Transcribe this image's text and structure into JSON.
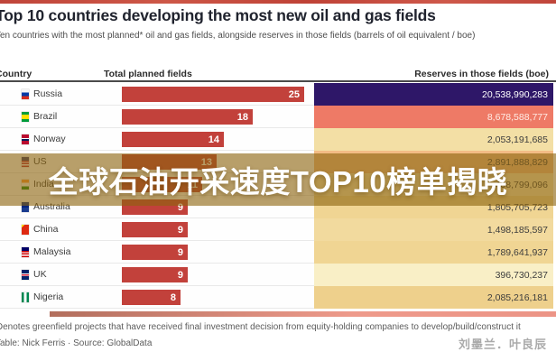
{
  "header": {
    "title": "Top 10 countries developing the most new oil and gas fields",
    "subtitle": "Ten countries with the most planned* oil and gas fields, alongside reserves in those fields (barrels of oil equivalent / boe)"
  },
  "table": {
    "columns": [
      "Country",
      "Total planned fields",
      "Reserves in those fields (boe)"
    ],
    "bar_color": "#c2413b",
    "rows": [
      {
        "country": "Russia",
        "flag": "russia",
        "planned": 25,
        "planned_label": "25",
        "reserves": "20,538,990,283",
        "cell_color": "#2e1768",
        "cell_text_color": "#ffffff"
      },
      {
        "country": "Brazil",
        "flag": "brazil",
        "planned": 18,
        "planned_label": "18",
        "reserves": "8,678,588,777",
        "cell_color": "#ee7a66",
        "cell_text_color": "#ffece5"
      },
      {
        "country": "Norway",
        "flag": "norway",
        "planned": 14,
        "planned_label": "14",
        "reserves": "2,053,191,685",
        "cell_color": "#f3dfa5",
        "cell_text_color": "#3d3d3d"
      },
      {
        "country": "US",
        "flag": "us",
        "planned": 13,
        "planned_label": "13",
        "reserves": "2,891,888,829",
        "cell_color": "#f2bc85",
        "cell_text_color": "#3d3d3d"
      },
      {
        "country": "India",
        "flag": "india",
        "planned": 11,
        "planned_label": "11",
        "reserves": "408,799,096",
        "cell_color": "#f6e5b2",
        "cell_text_color": "#3d3d3d"
      },
      {
        "country": "Australia",
        "flag": "australia",
        "planned": 9,
        "planned_label": "9",
        "reserves": "1,805,705,723",
        "cell_color": "#f0d593",
        "cell_text_color": "#3d3d3d"
      },
      {
        "country": "China",
        "flag": "china",
        "planned": 9,
        "planned_label": "9",
        "reserves": "1,498,185,597",
        "cell_color": "#f2da9e",
        "cell_text_color": "#3d3d3d"
      },
      {
        "country": "Malaysia",
        "flag": "malaysia",
        "planned": 9,
        "planned_label": "9",
        "reserves": "1,789,641,937",
        "cell_color": "#f0d593",
        "cell_text_color": "#3d3d3d"
      },
      {
        "country": "UK",
        "flag": "uk",
        "planned": 9,
        "planned_label": "9",
        "reserves": "396,730,237",
        "cell_color": "#f9efc6",
        "cell_text_color": "#3d3d3d"
      },
      {
        "country": "Nigeria",
        "flag": "nigeria",
        "planned": 8,
        "planned_label": "8",
        "reserves": "2,085,216,181",
        "cell_color": "#eed08c",
        "cell_text_color": "#3d3d3d"
      }
    ]
  },
  "overlay": {
    "text": "全球石油开采速度TOP10榜单揭晓",
    "band_color": "rgba(141,100,15,0.62)"
  },
  "footnotes": {
    "line1": "*Denotes greenfield projects that have received final investment decision from equity-holding companies to develop/build/construct it",
    "line2": "Table: Nick Ferris · Source: GlobalData"
  },
  "watermark": "刘墨兰．叶良辰",
  "accent_colors": {
    "top_strip": "#c0453a",
    "bottom_strip": "#ee9a8b",
    "bar": "#c2413b",
    "reserves_max": "#2e1768",
    "reserves_min": "#f9efc6"
  },
  "chart_data": {
    "type": "bar",
    "orientation": "horizontal",
    "title": "Top 10 countries developing the most new oil and gas fields",
    "subtitle": "Ten countries with the most planned* oil and gas fields, alongside reserves in those fields (barrels of oil equivalent / boe)",
    "categories": [
      "Russia",
      "Brazil",
      "Norway",
      "US",
      "India",
      "Australia",
      "China",
      "Malaysia",
      "UK",
      "Nigeria"
    ],
    "series": [
      {
        "name": "Total planned fields",
        "values": [
          25,
          18,
          14,
          13,
          11,
          9,
          9,
          9,
          9,
          8
        ]
      },
      {
        "name": "Reserves in those fields (boe)",
        "values": [
          20538990283,
          8678588777,
          2053191685,
          2891888829,
          408799096,
          1805705723,
          1498185597,
          1789641937,
          396730237,
          2085216181
        ]
      }
    ],
    "xlim": [
      0,
      25
    ],
    "grid": false,
    "legend": false,
    "note": "Reserves column rendered as heatmap cells from pale yellow (low) to dark indigo (high); India planned-fields bar partially obscured by overlay caption"
  }
}
